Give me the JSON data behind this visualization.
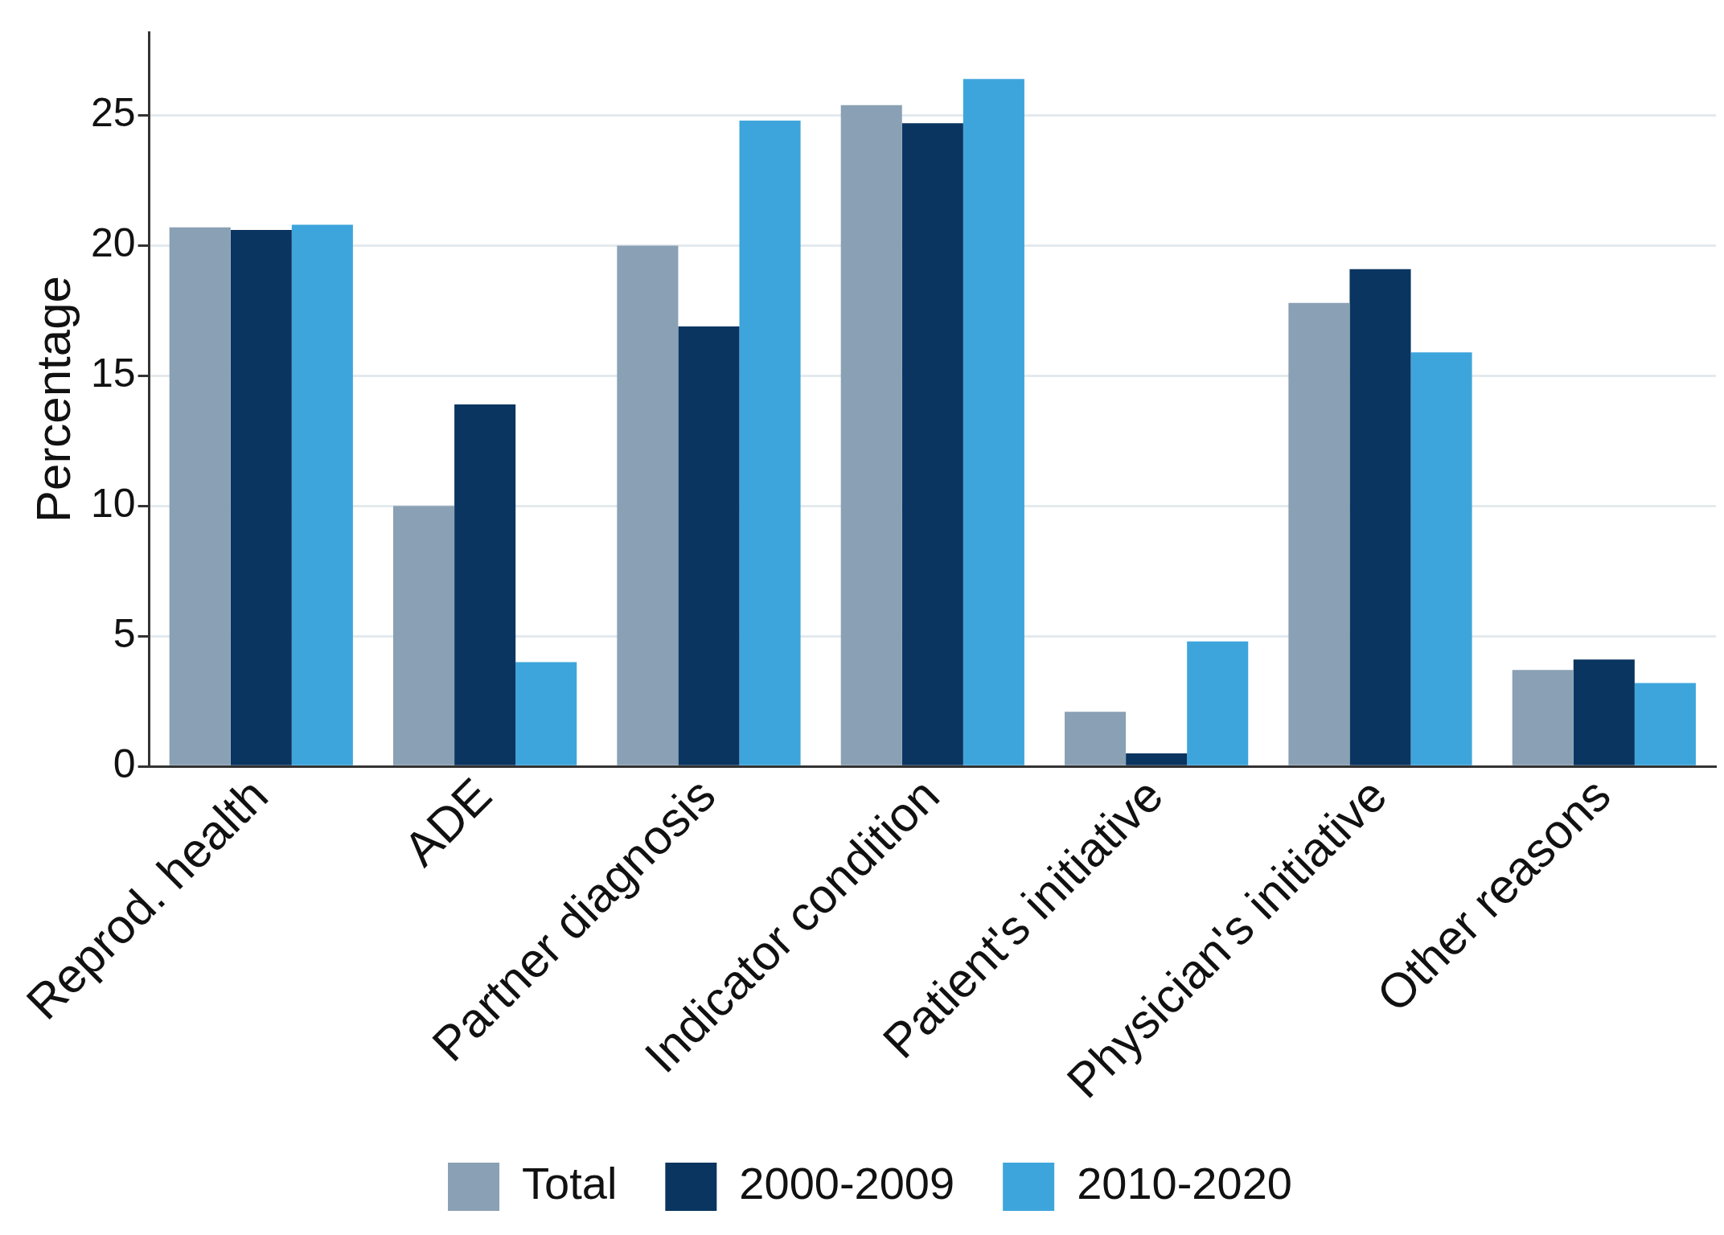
{
  "chart_data": {
    "type": "bar",
    "ylabel": "Percentage",
    "categories": [
      "Reprod. health",
      "ADE",
      "Partner diagnosis",
      "Indicator condition",
      "Patient's initiative",
      "Physician's initiative",
      "Other reasons"
    ],
    "series": [
      {
        "name": "Total",
        "color": "#8aa0b4",
        "values": [
          20.7,
          10.0,
          20.0,
          25.4,
          2.1,
          17.8,
          3.7
        ]
      },
      {
        "name": "2000-2009",
        "color": "#0a3560",
        "values": [
          20.6,
          13.9,
          16.9,
          24.7,
          0.5,
          19.1,
          4.1
        ]
      },
      {
        "name": "2010-2020",
        "color": "#3ea5dc",
        "values": [
          20.8,
          4.0,
          24.8,
          26.4,
          4.8,
          15.9,
          3.2
        ]
      }
    ],
    "ylim": [
      0,
      28.2
    ],
    "yticks": [
      0,
      5,
      10,
      15,
      20,
      25
    ],
    "grid": "y",
    "legend": "bottom"
  }
}
